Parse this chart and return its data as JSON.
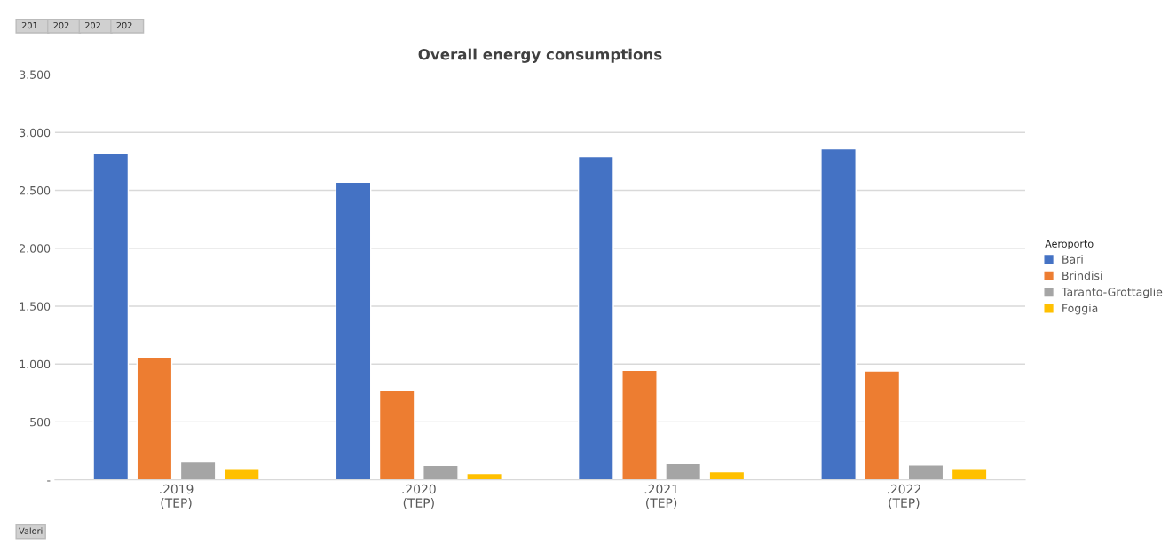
{
  "chart_data": {
    "type": "bar",
    "title": "Overall energy consumptions",
    "categories": [
      ".2019\n(TEP)",
      ".2020\n(TEP)",
      ".2021\n(TEP)",
      ".2022\n(TEP)"
    ],
    "series": [
      {
        "name": "Bari",
        "color": "#4472c4",
        "values": [
          2820,
          2570,
          2790,
          2860
        ]
      },
      {
        "name": "Brindisi",
        "color": "#ed7d31",
        "values": [
          1060,
          770,
          945,
          940
        ]
      },
      {
        "name": "Taranto-Grottaglie",
        "color": "#a5a5a5",
        "values": [
          155,
          125,
          140,
          130
        ]
      },
      {
        "name": "Foggia",
        "color": "#ffc000",
        "values": [
          90,
          55,
          70,
          90
        ]
      }
    ],
    "ylim": [
      0,
      3500
    ],
    "yticks": [
      {
        "value": 0,
        "label": "-"
      },
      {
        "value": 500,
        "label": "500"
      },
      {
        "value": 1000,
        "label": "1.000"
      },
      {
        "value": 1500,
        "label": "1.500"
      },
      {
        "value": 2000,
        "label": "2.000"
      },
      {
        "value": 2500,
        "label": "2.500"
      },
      {
        "value": 3000,
        "label": "3.000"
      },
      {
        "value": 3500,
        "label": "3.500"
      }
    ],
    "grid": "y",
    "legend": "right",
    "legend_title": "Aeroporto",
    "annotations": [
      ".201...",
      ".202...",
      ".202...",
      ".202...",
      "Valori"
    ]
  }
}
